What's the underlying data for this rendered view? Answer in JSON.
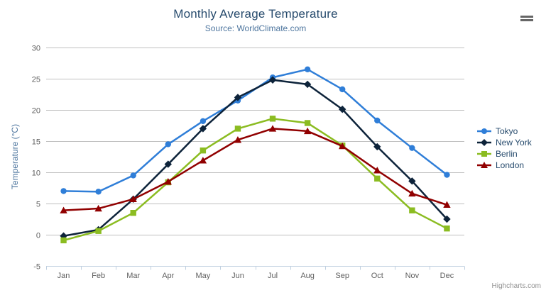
{
  "header": {
    "title": "Monthly Average Temperature",
    "subtitle": "Source: WorldClimate.com"
  },
  "export_menu": {
    "icon": "hamburger-icon"
  },
  "credits": {
    "label": "Highcharts.com"
  },
  "colors": {
    "title_text": "#274b6d",
    "subtitle_text": "#4d759e",
    "axis_label": "#606060",
    "axis_title": "#4d759e",
    "gridline": "#c0c0c0",
    "axis_line": "#c0d0e0",
    "legend_text": "#274b6d",
    "credits_text": "#909090"
  },
  "chart_data": {
    "type": "line",
    "title": "Monthly Average Temperature",
    "subtitle": "Source: WorldClimate.com",
    "categories": [
      "Jan",
      "Feb",
      "Mar",
      "Apr",
      "May",
      "Jun",
      "Jul",
      "Aug",
      "Sep",
      "Oct",
      "Nov",
      "Dec"
    ],
    "xlabel": "",
    "ylabel": "Temperature (°C)",
    "ylim": [
      -5,
      30
    ],
    "ytick_interval": 5,
    "yticks": [
      -5,
      0,
      5,
      10,
      15,
      20,
      25,
      30
    ],
    "grid": true,
    "legend_position": "right",
    "series": [
      {
        "name": "Tokyo",
        "color": "#2f7ed8",
        "marker": "circle",
        "values": [
          7.0,
          6.9,
          9.5,
          14.5,
          18.2,
          21.5,
          25.2,
          26.5,
          23.3,
          18.3,
          13.9,
          9.6
        ]
      },
      {
        "name": "New York",
        "color": "#0d233a",
        "marker": "diamond",
        "values": [
          -0.2,
          0.8,
          5.7,
          11.3,
          17.0,
          22.0,
          24.8,
          24.1,
          20.1,
          14.1,
          8.6,
          2.5
        ]
      },
      {
        "name": "Berlin",
        "color": "#8bbc21",
        "marker": "square",
        "values": [
          -0.9,
          0.6,
          3.5,
          8.4,
          13.5,
          17.0,
          18.6,
          17.9,
          14.3,
          9.0,
          3.9,
          1.0
        ]
      },
      {
        "name": "London",
        "color": "#910000",
        "marker": "triangle",
        "values": [
          3.9,
          4.2,
          5.7,
          8.5,
          11.9,
          15.2,
          17.0,
          16.6,
          14.2,
          10.3,
          6.6,
          4.8
        ]
      }
    ]
  }
}
